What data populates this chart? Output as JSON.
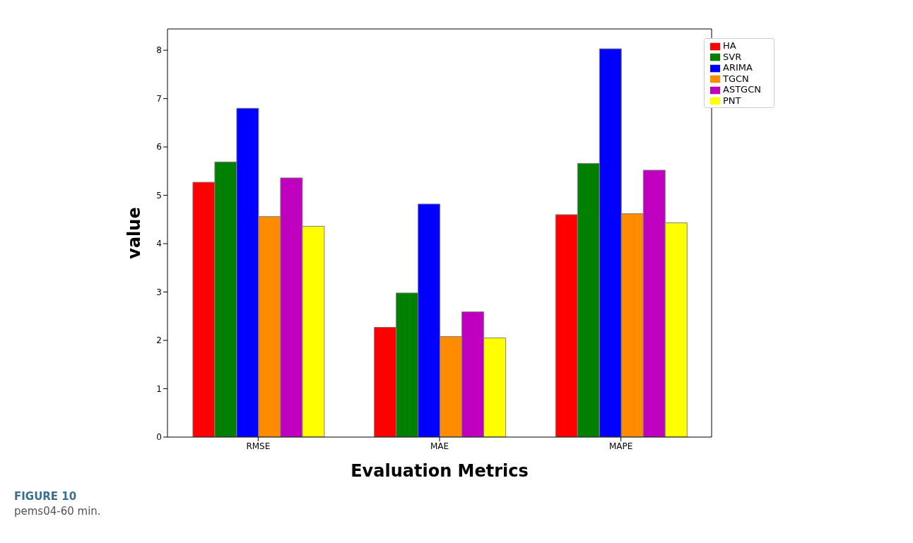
{
  "chart_data": {
    "type": "bar",
    "xlabel": "Evaluation Metrics",
    "ylabel": "value",
    "categories": [
      "RMSE",
      "MAE",
      "MAPE"
    ],
    "series": [
      {
        "name": "HA",
        "color": "#ff0000",
        "values": [
          5.27,
          2.27,
          4.6
        ]
      },
      {
        "name": "SVR",
        "color": "#008000",
        "values": [
          5.69,
          2.98,
          5.66
        ]
      },
      {
        "name": "ARIMA",
        "color": "#0000ff",
        "values": [
          6.8,
          4.82,
          8.03
        ]
      },
      {
        "name": "TGCN",
        "color": "#ff8c00",
        "values": [
          4.56,
          2.08,
          4.62
        ]
      },
      {
        "name": "ASTGCN",
        "color": "#bf00bf",
        "values": [
          5.36,
          2.59,
          5.52
        ]
      },
      {
        "name": "PNT",
        "color": "#ffff00",
        "values": [
          4.36,
          2.05,
          4.43
        ]
      }
    ],
    "ylim": [
      0,
      8.44
    ],
    "yticks": [
      0,
      1,
      2,
      3,
      4,
      5,
      6,
      7,
      8
    ],
    "legend": "top right",
    "annotations": [
      "FIGURE 10",
      "pems04-60 min."
    ]
  }
}
